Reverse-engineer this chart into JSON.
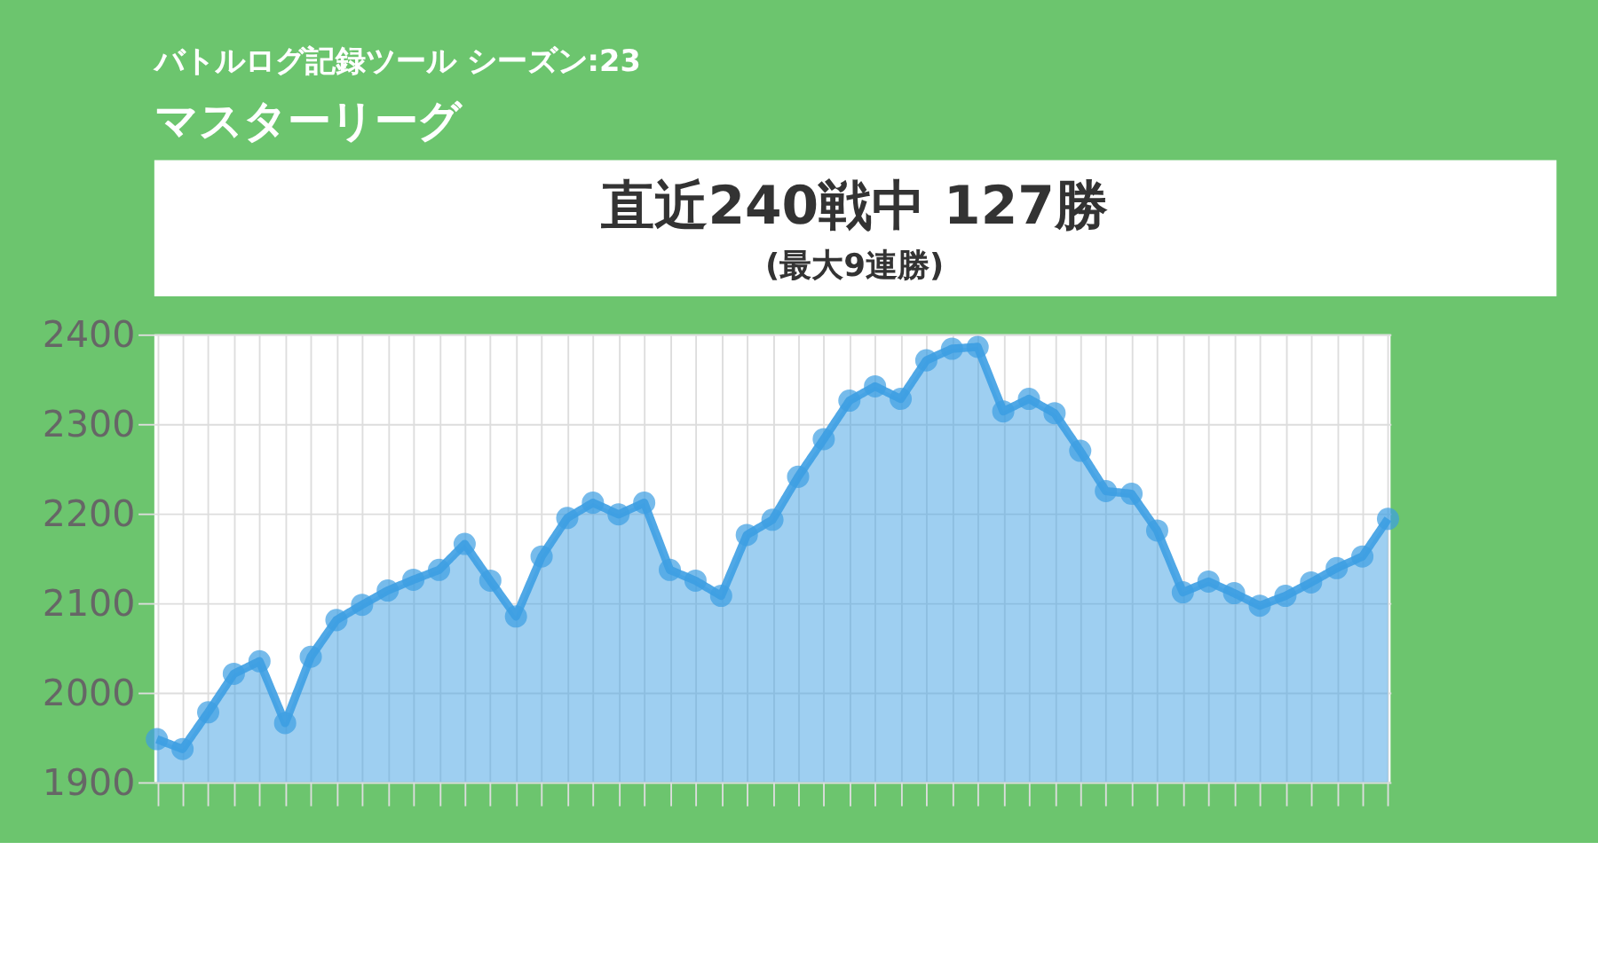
{
  "chart_data": {
    "type": "area",
    "title": "バトルログ記録ツール シーズン:23",
    "subtitle": "マスターリーグ",
    "annotations": [
      "直近240戦中 127勝",
      "(最大9連勝)"
    ],
    "categories": [
      null,
      null,
      null,
      null,
      null,
      null,
      null,
      null,
      null,
      null,
      null,
      null,
      null,
      null,
      null,
      null,
      null,
      null,
      null,
      null,
      null,
      null,
      null,
      null,
      null,
      null,
      null,
      null,
      null,
      null,
      null,
      null,
      null,
      null,
      null,
      null,
      null,
      null,
      null,
      null,
      null,
      null,
      null,
      null,
      null,
      null,
      null,
      null,
      null
    ],
    "series": [
      {
        "color": "#3d9fe3",
        "values": [
          1948,
          1937,
          1978,
          2021,
          2035,
          1966,
          2040,
          2081,
          2098,
          2114,
          2126,
          2137,
          2166,
          2125,
          2085,
          2152,
          2195,
          2212,
          2199,
          2212,
          2137,
          2125,
          2108,
          2176,
          2193,
          2241,
          2283,
          2326,
          2342,
          2328,
          2371,
          2384,
          2386,
          2314,
          2328,
          2312,
          2270,
          2225,
          2222,
          2181,
          2112,
          2124,
          2111,
          2097,
          2108,
          2123,
          2139,
          2152,
          2194
        ]
      }
    ],
    "ylim": [
      1900,
      2400
    ],
    "yticks": [
      1900,
      2000,
      2100,
      2200,
      2300,
      2400
    ],
    "grid": true,
    "marker": "circle",
    "line_style": "solid",
    "tick_labels": "y"
  }
}
